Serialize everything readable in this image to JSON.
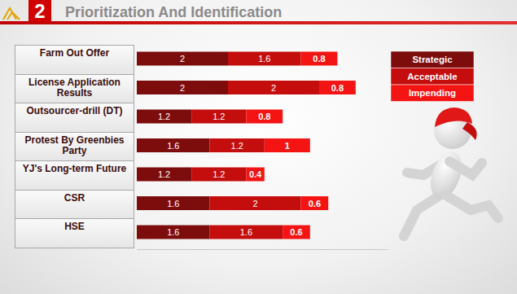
{
  "chart_data": {
    "type": "bar",
    "title": "Prioritization And Identification",
    "annotations": [
      "2"
    ],
    "orientation": "horizontal",
    "stacked": true,
    "data_labels": true,
    "tick_labels": false,
    "grid": false,
    "legend": "top-right",
    "xlim": [
      0,
      5.5
    ],
    "categories": [
      "Farm Out Offer",
      "License Application Results",
      "Outsourcer-drill (DT)",
      "Protest By Greenbies Party",
      "YJ's Long-term Future",
      "CSR",
      "HSE"
    ],
    "series": [
      {
        "name": "Strategic",
        "color": "#7d0c0c",
        "values": [
          2,
          2,
          1.2,
          1.6,
          1.2,
          1.6,
          1.6
        ]
      },
      {
        "name": "Acceptable",
        "color": "#c40d0d",
        "values": [
          1.6,
          2,
          1.2,
          1.2,
          1.2,
          2,
          1.6
        ]
      },
      {
        "name": "Impending",
        "color": "#f41414",
        "values": [
          0.8,
          0.8,
          0.8,
          1,
          0.4,
          0.6,
          0.6
        ]
      }
    ]
  }
}
